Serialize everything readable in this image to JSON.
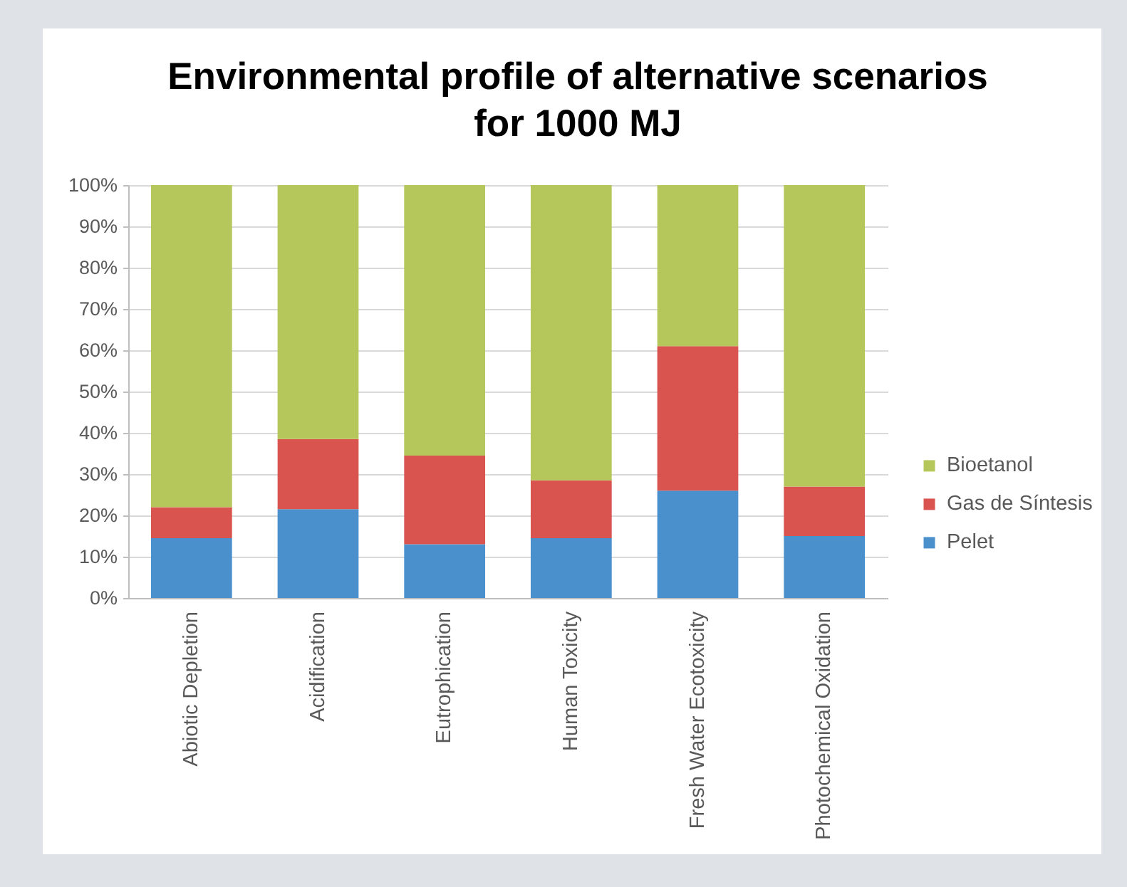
{
  "chart_data": {
    "type": "bar",
    "title": "Environmental profile of alternative scenarios\nfor 1000 MJ",
    "categories": [
      "Abiotic Depletion",
      "Acidification",
      "Eutrophication",
      "Human Toxicity",
      "Fresh Water Ecotoxicity",
      "Photochemical Oxidation"
    ],
    "series": [
      {
        "name": "Pelet",
        "color": "#4a90cc",
        "values": [
          14.5,
          21.5,
          13,
          14.5,
          26,
          15
        ]
      },
      {
        "name": "Gas de Síntesis",
        "color": "#d9544f",
        "values": [
          7.5,
          17,
          21.5,
          14,
          35,
          12
        ]
      },
      {
        "name": "Bioetanol",
        "color": "#b5c75a",
        "values": [
          78,
          61.5,
          65.5,
          71.5,
          39,
          73
        ]
      }
    ],
    "stacked": true,
    "ylim": [
      0,
      100
    ],
    "yticks": [
      {
        "value": 0,
        "label": "0%"
      },
      {
        "value": 10,
        "label": "10%"
      },
      {
        "value": 20,
        "label": "20%"
      },
      {
        "value": 30,
        "label": "30%"
      },
      {
        "value": 40,
        "label": "40%"
      },
      {
        "value": 50,
        "label": "50%"
      },
      {
        "value": 60,
        "label": "60%"
      },
      {
        "value": 70,
        "label": "70%"
      },
      {
        "value": 80,
        "label": "80%"
      },
      {
        "value": 90,
        "label": "90%"
      },
      {
        "value": 100,
        "label": "100%"
      }
    ],
    "grid": "y",
    "legend": "right"
  }
}
